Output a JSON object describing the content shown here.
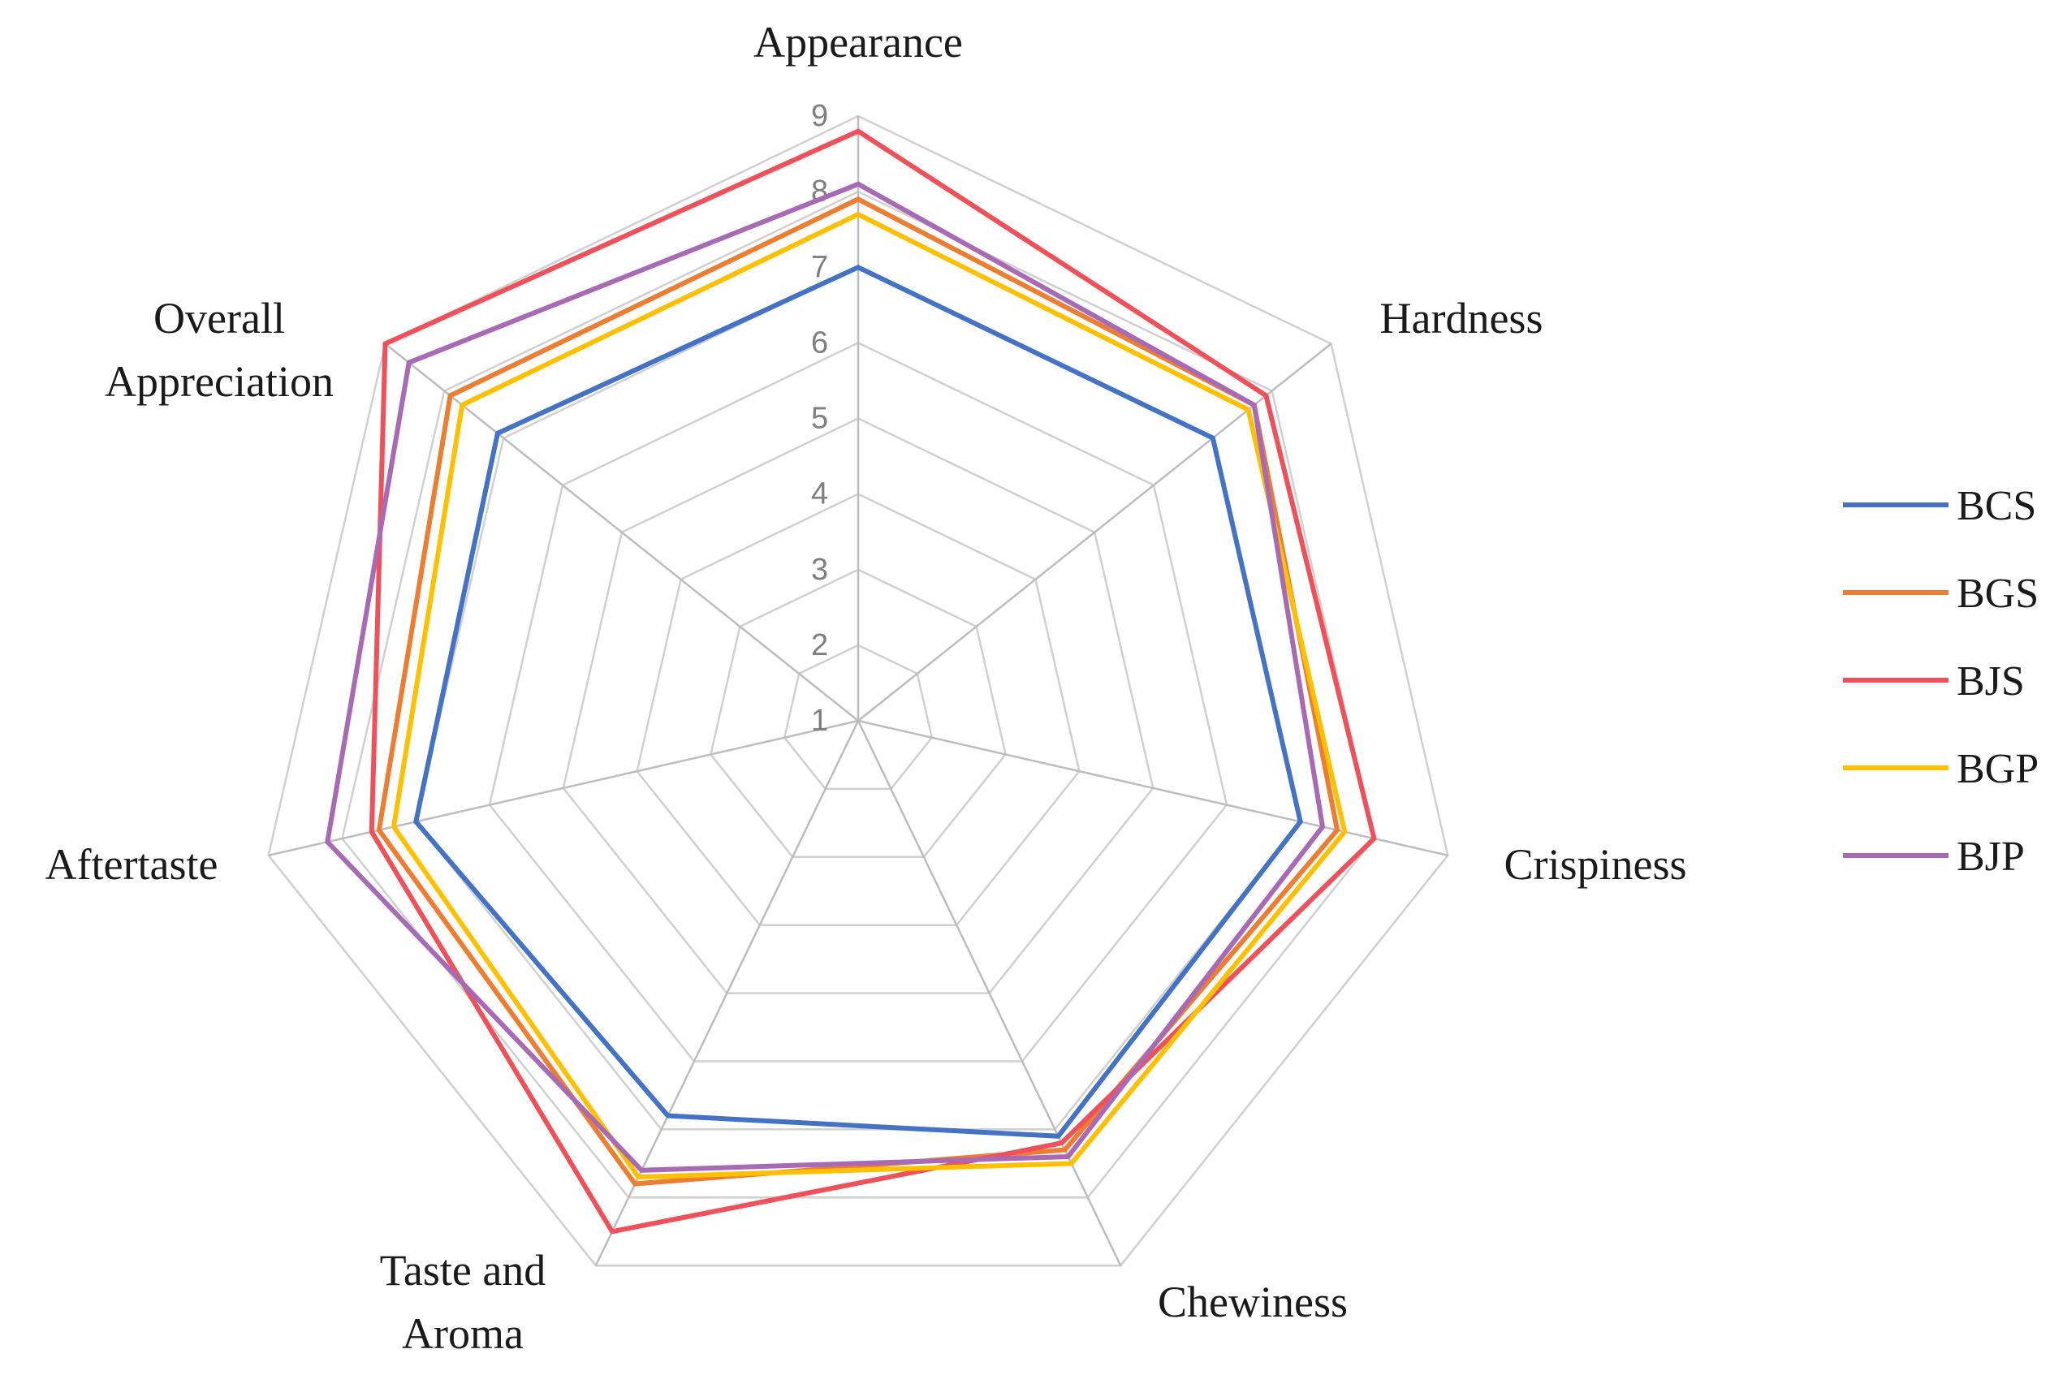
{
  "chart_data": {
    "type": "radar",
    "axes": [
      {
        "label": "Appearance",
        "lines": [
          "Appearance"
        ]
      },
      {
        "label": "Hardness",
        "lines": [
          "Hardness"
        ]
      },
      {
        "label": "Crispiness",
        "lines": [
          "Crispiness"
        ]
      },
      {
        "label": "Chewiness",
        "lines": [
          "Chewiness"
        ]
      },
      {
        "label": "Taste and Aroma",
        "lines": [
          "Taste and",
          "Aroma"
        ]
      },
      {
        "label": "Aftertaste",
        "lines": [
          "Aftertaste"
        ]
      },
      {
        "label": "Overall Appreciation",
        "lines": [
          "Overall",
          "Appreciation"
        ]
      }
    ],
    "range": [
      1,
      9
    ],
    "ticks": [
      "1",
      "2",
      "3",
      "4",
      "5",
      "6",
      "7",
      "8",
      "9"
    ],
    "grid": true,
    "legend_position": "right",
    "series": [
      {
        "name": "BCS",
        "color": "#4472C4",
        "values": [
          7.0,
          7.0,
          7.0,
          7.1,
          6.8,
          7.0,
          7.1
        ]
      },
      {
        "name": "BGS",
        "color": "#ED7D31",
        "values": [
          7.9,
          7.7,
          7.5,
          7.3,
          7.8,
          7.5,
          7.9
        ]
      },
      {
        "name": "BJS",
        "color": "#F0505A",
        "values": [
          8.8,
          7.9,
          8.0,
          7.2,
          8.5,
          7.6,
          9.0
        ]
      },
      {
        "name": "BGP",
        "color": "#FFC000",
        "values": [
          7.7,
          7.6,
          7.6,
          7.5,
          7.7,
          7.3,
          7.7
        ]
      },
      {
        "name": "BJP",
        "color": "#A86AB4",
        "values": [
          8.1,
          7.7,
          7.3,
          7.4,
          7.6,
          8.2,
          8.6
        ]
      }
    ]
  }
}
